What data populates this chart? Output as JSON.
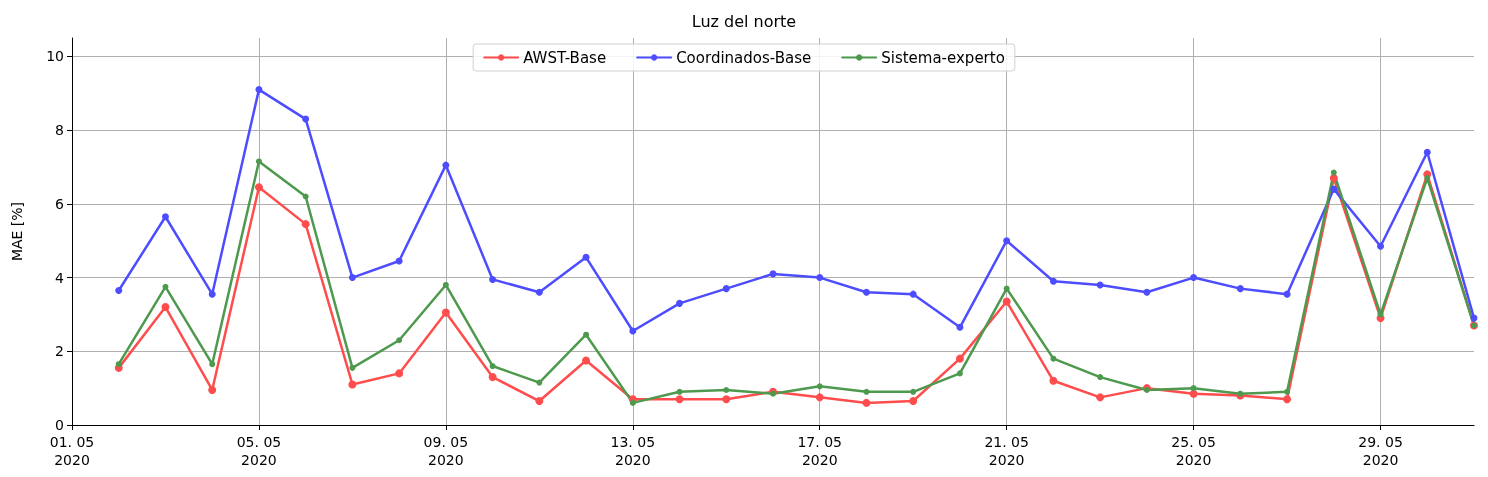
{
  "chart_data": {
    "type": "line",
    "title": "Luz del norte",
    "ylabel": "MAE [%]",
    "x": [
      "2020-05-02",
      "2020-05-03",
      "2020-05-04",
      "2020-05-05",
      "2020-05-06",
      "2020-05-07",
      "2020-05-08",
      "2020-05-09",
      "2020-05-10",
      "2020-05-11",
      "2020-05-12",
      "2020-05-13",
      "2020-05-14",
      "2020-05-15",
      "2020-05-16",
      "2020-05-17",
      "2020-05-18",
      "2020-05-19",
      "2020-05-20",
      "2020-05-21",
      "2020-05-22",
      "2020-05-23",
      "2020-05-24",
      "2020-05-25",
      "2020-05-26",
      "2020-05-27",
      "2020-05-28",
      "2020-05-29",
      "2020-05-30",
      "2020-05-31"
    ],
    "series": [
      {
        "name": "AWST-Base",
        "color": "#ff4d4d",
        "values": [
          1.55,
          3.2,
          0.95,
          6.45,
          5.45,
          1.1,
          1.4,
          3.05,
          1.3,
          0.65,
          1.75,
          0.7,
          0.7,
          0.7,
          0.9,
          0.75,
          0.6,
          0.65,
          1.8,
          3.35,
          1.2,
          0.75,
          1.0,
          0.85,
          0.8,
          0.7,
          6.7,
          2.9,
          6.8,
          2.7
        ]
      },
      {
        "name": "Coordinados-Base",
        "color": "#4d4dff",
        "values": [
          3.65,
          5.65,
          3.55,
          9.1,
          8.3,
          4.0,
          4.45,
          7.05,
          3.95,
          3.6,
          4.55,
          2.55,
          3.3,
          3.7,
          4.1,
          4.0,
          3.6,
          3.55,
          2.65,
          5.0,
          3.9,
          3.8,
          3.6,
          4.0,
          3.7,
          3.55,
          6.4,
          4.85,
          7.4,
          2.9
        ]
      },
      {
        "name": "Sistema-experto",
        "color": "#4d994d",
        "values": [
          1.65,
          3.75,
          1.65,
          7.15,
          6.2,
          1.55,
          2.3,
          3.8,
          1.6,
          1.15,
          2.45,
          0.6,
          0.9,
          0.95,
          0.85,
          1.05,
          0.9,
          0.9,
          1.4,
          3.7,
          1.8,
          1.3,
          0.95,
          1.0,
          0.85,
          0.9,
          6.85,
          3.0,
          6.7,
          2.7
        ]
      }
    ],
    "xlim": [
      "2020-05-01",
      "2020-05-31"
    ],
    "xticks": [
      {
        "value": "2020-05-01",
        "label": "01. 05\n2020"
      },
      {
        "value": "2020-05-05",
        "label": "05. 05\n2020"
      },
      {
        "value": "2020-05-09",
        "label": "09. 05\n2020"
      },
      {
        "value": "2020-05-13",
        "label": "13. 05\n2020"
      },
      {
        "value": "2020-05-17",
        "label": "17. 05\n2020"
      },
      {
        "value": "2020-05-21",
        "label": "21. 05\n2020"
      },
      {
        "value": "2020-05-25",
        "label": "25. 05\n2020"
      },
      {
        "value": "2020-05-29",
        "label": "29. 05\n2020"
      }
    ],
    "ylim": [
      0,
      10.5
    ],
    "yticks": [
      0,
      2,
      4,
      6,
      8,
      10
    ],
    "grid": true,
    "legend": "top",
    "marker": "circle",
    "line_style": "solid"
  }
}
